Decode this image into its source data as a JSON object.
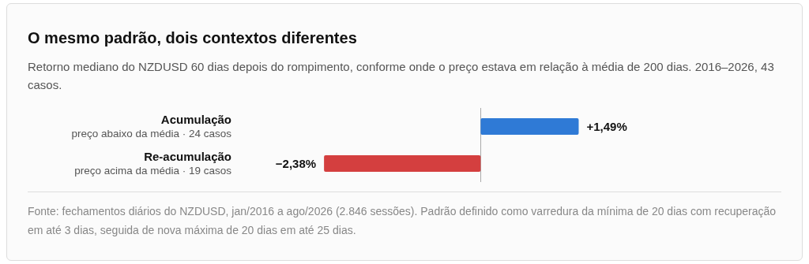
{
  "chart_data": {
    "type": "bar",
    "orientation": "horizontal",
    "title": "O mesmo padrão, dois contextos diferentes",
    "subtitle": "Retorno mediano do NZDUSD 60 dias depois do rompimento, conforme onde o preço estava em relação à média de 200 dias. 2016–2026, 43 casos.",
    "categories": [
      "Acumulação\npreço abaixo da média · 24 casos",
      "Re-acumulação\npreço acima da média · 19 casos"
    ],
    "values": [
      1.49,
      -2.38
    ],
    "colors": [
      "#2f7ad6",
      "#d43f3f"
    ],
    "value_labels": [
      "+1,49%",
      "−2,38%"
    ],
    "annotations": [
      "Fonte: fechamentos diários do NZDUSD, jan/2016 a ago/2026 (2.846 sessões). Padrão definido como varredura da mínima de 20 dias com recuperação em até 3 dias, seguida de nova máxima de 20 dias em até 25 dias."
    ]
  }
}
